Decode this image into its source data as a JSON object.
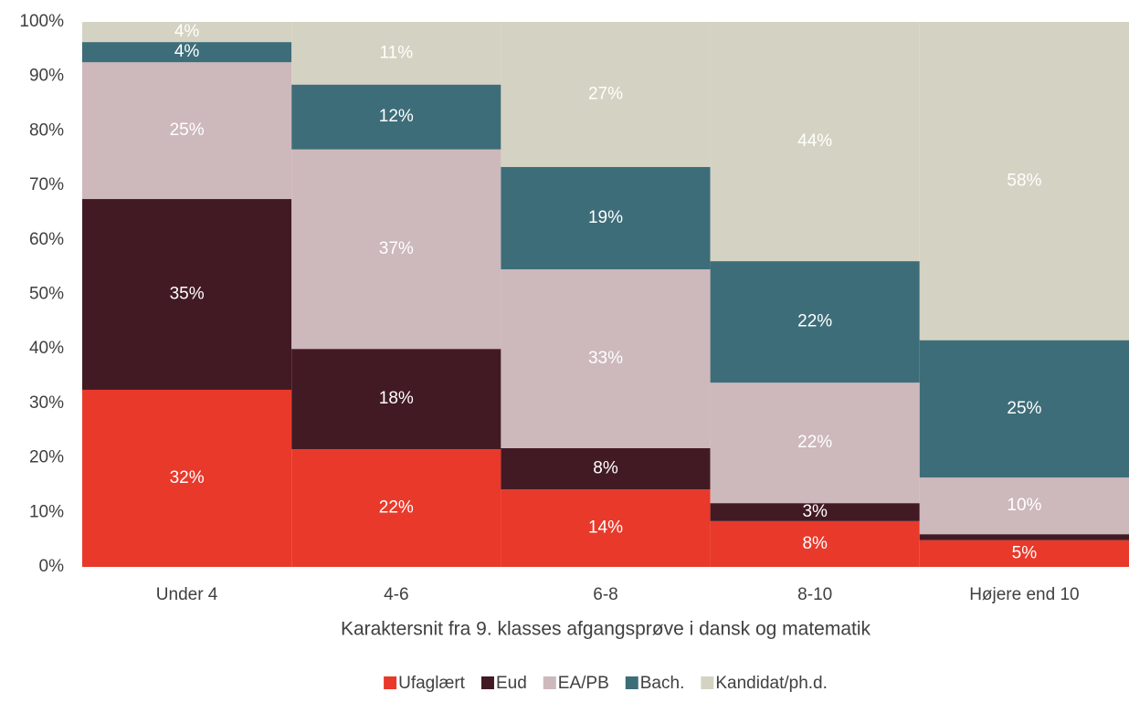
{
  "chart_data": {
    "type": "stacked_bar",
    "x_label": "Karaktersnit fra 9. klasses afgangsprøve i dansk og matematik",
    "categories": [
      "Under 4",
      "4-6",
      "6-8",
      "8-10",
      "Højere end 10"
    ],
    "series": [
      {
        "name": "Ufaglært",
        "color": "#e8392b",
        "values": [
          32.5,
          21.6,
          14.2,
          8.4,
          4.9
        ],
        "value_labels": [
          "32%",
          "22%",
          "14%",
          "8%",
          "5%"
        ]
      },
      {
        "name": "Eud",
        "color": "#421a24",
        "values": [
          35.0,
          18.4,
          7.6,
          3.3,
          1.1
        ],
        "value_labels": [
          "35%",
          "18%",
          "8%",
          "3%",
          null
        ]
      },
      {
        "name": "EA/PB",
        "color": "#cdb8bc",
        "values": [
          25.1,
          36.6,
          32.8,
          22.1,
          10.4
        ],
        "value_labels": [
          "25%",
          "37%",
          "33%",
          "22%",
          "10%"
        ]
      },
      {
        "name": "Bach.",
        "color": "#3d6d79",
        "values": [
          3.7,
          11.9,
          18.8,
          22.3,
          25.2
        ],
        "value_labels": [
          "4%",
          "12%",
          "19%",
          "22%",
          "25%"
        ]
      },
      {
        "name": "Kandidat/ph.d.",
        "color": "#d4d2c2",
        "values": [
          3.7,
          11.5,
          26.6,
          43.9,
          58.4
        ],
        "value_labels": [
          "4%",
          "11%",
          "27%",
          "44%",
          "58%"
        ]
      }
    ],
    "ylim": [
      0,
      100
    ],
    "yticks": [
      {
        "value": 0,
        "label": "0%"
      },
      {
        "value": 10,
        "label": "10%"
      },
      {
        "value": 20,
        "label": "20%"
      },
      {
        "value": 30,
        "label": "30%"
      },
      {
        "value": 40,
        "label": "40%"
      },
      {
        "value": 50,
        "label": "50%"
      },
      {
        "value": 60,
        "label": "60%"
      },
      {
        "value": 70,
        "label": "70%"
      },
      {
        "value": 80,
        "label": "80%"
      },
      {
        "value": 90,
        "label": "90%"
      },
      {
        "value": 100,
        "label": "100%"
      }
    ],
    "legend": "bottom"
  }
}
